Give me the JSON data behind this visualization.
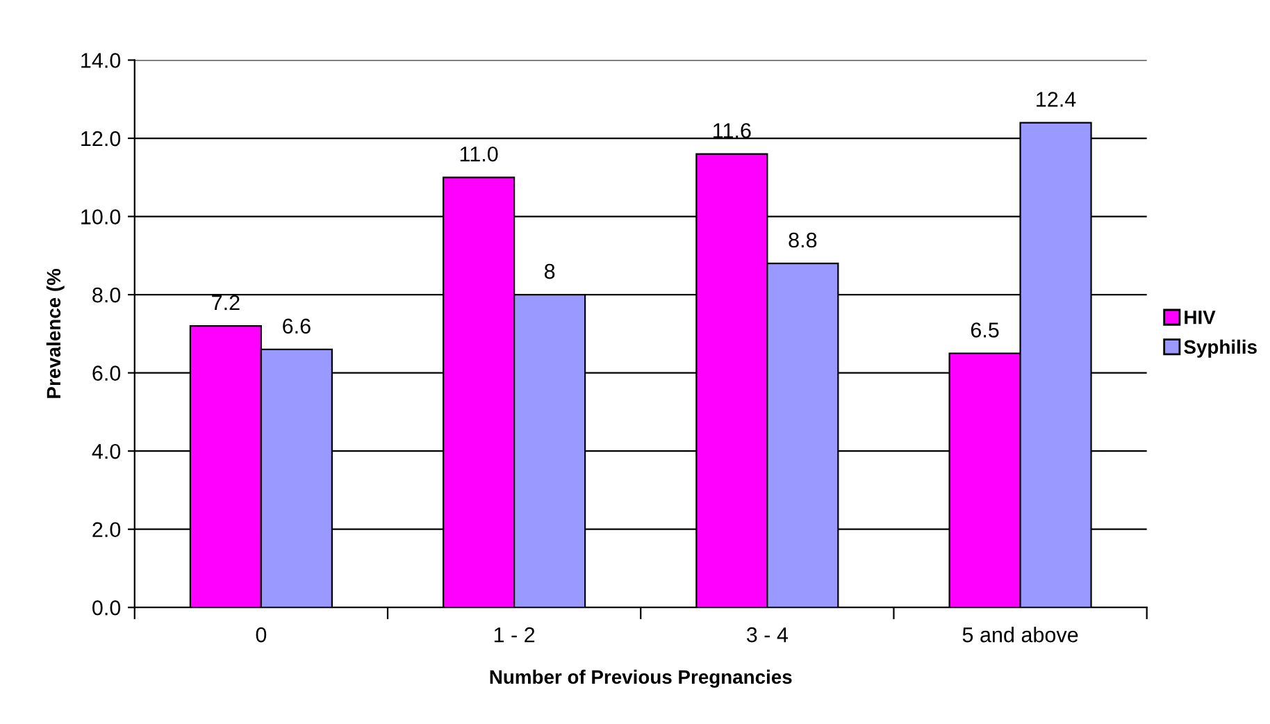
{
  "chart_data": {
    "type": "bar",
    "xlabel": "Number of Previous Pregnancies",
    "ylabel": "Prevalence (%",
    "categories": [
      "0",
      "1 - 2",
      "3 - 4",
      "5 and above"
    ],
    "series": [
      {
        "name": "HIV",
        "color": "#ff00ff",
        "values": [
          7.2,
          11.0,
          11.6,
          6.5
        ],
        "value_labels": [
          "7.2",
          "11.0",
          "11.6",
          "6.5"
        ]
      },
      {
        "name": "Syphilis",
        "color": "#9999ff",
        "values": [
          6.6,
          8,
          8.8,
          12.4
        ],
        "value_labels": [
          "6.6",
          "8",
          "8.8",
          "12.4"
        ]
      }
    ],
    "ylim": [
      0,
      14
    ],
    "yticks": [
      {
        "value": 0,
        "label": "0.0"
      },
      {
        "value": 2,
        "label": "2.0"
      },
      {
        "value": 4,
        "label": "4.0"
      },
      {
        "value": 6,
        "label": "6.0"
      },
      {
        "value": 8,
        "label": "8.0"
      },
      {
        "value": 10,
        "label": "10.0"
      },
      {
        "value": 12,
        "label": "12.0"
      },
      {
        "value": 14,
        "label": "14.0"
      }
    ],
    "grid": "y",
    "legend": "right"
  }
}
